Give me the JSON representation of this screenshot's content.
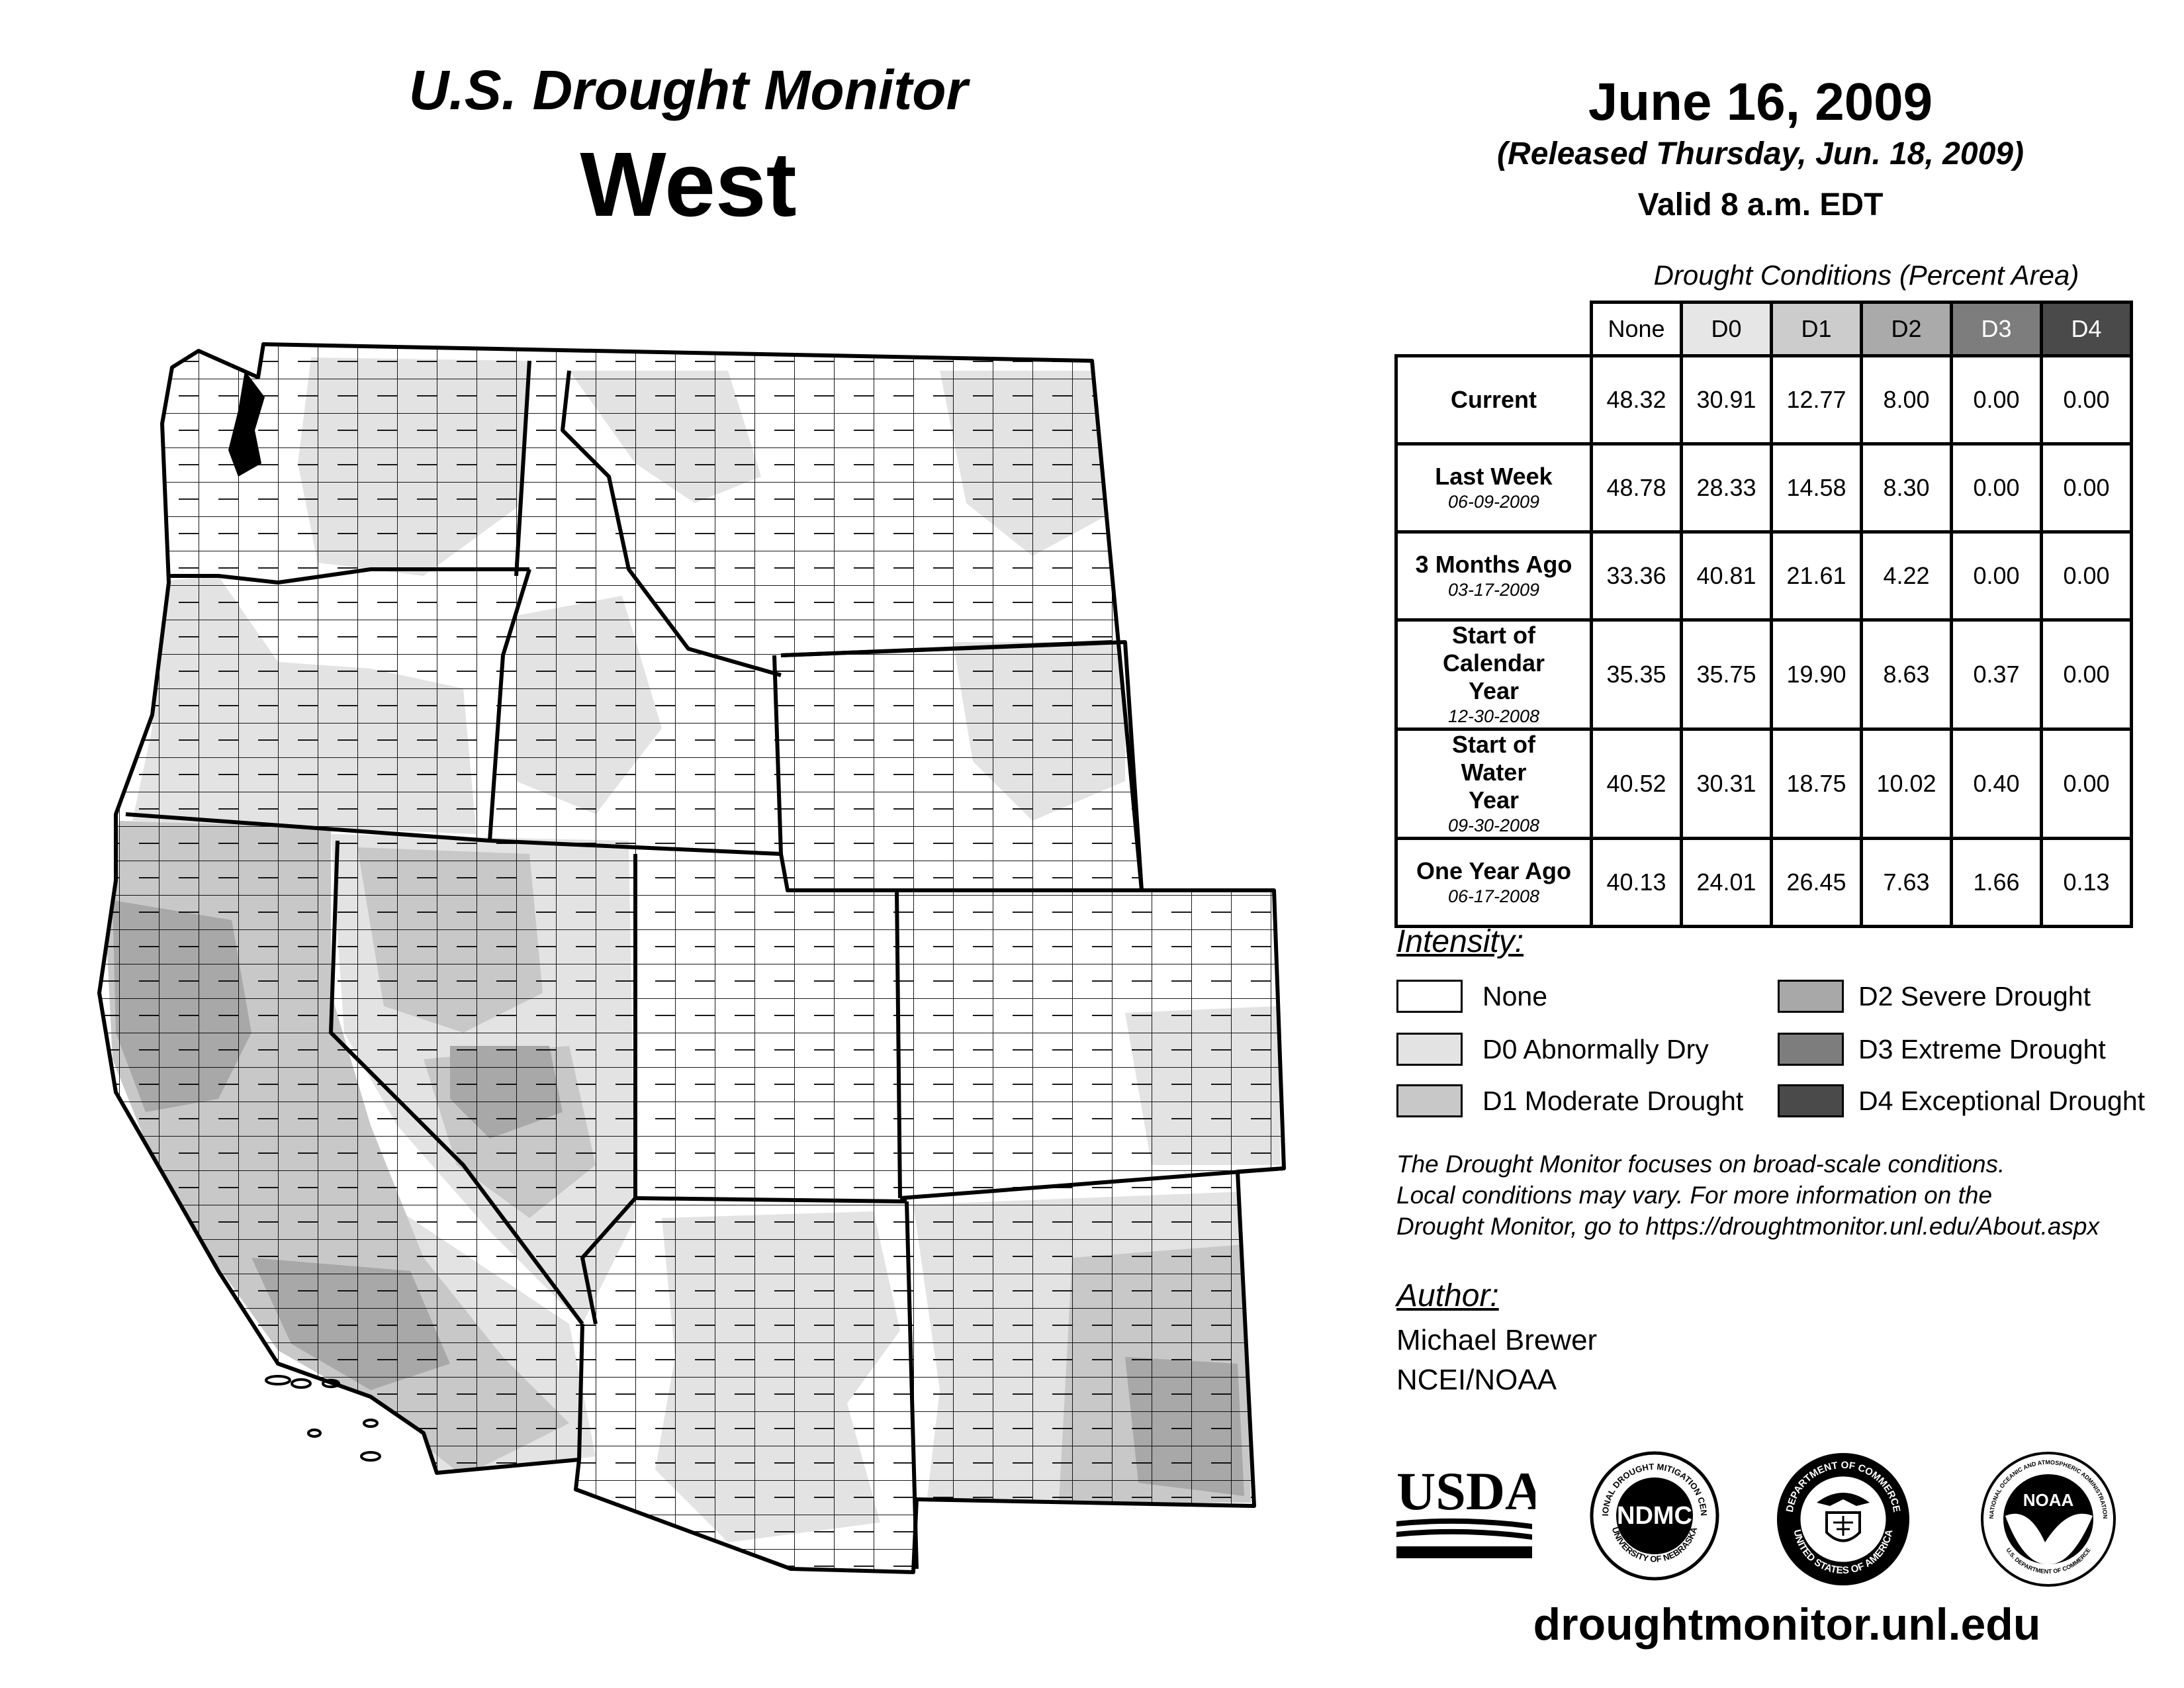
{
  "header": {
    "title": "U.S. Drought Monitor",
    "region": "West",
    "date": "June 16, 2009",
    "released": "(Released Thursday, Jun. 18, 2009)",
    "valid": "Valid 8 a.m. EDT"
  },
  "table": {
    "caption": "Drought Conditions (Percent Area)",
    "columns": [
      "None",
      "D0",
      "D1",
      "D2",
      "D3",
      "D4"
    ],
    "column_colors": [
      "#ffffff",
      "#e6e6e6",
      "#cccccc",
      "#aaaaaa",
      "#7d7d7d",
      "#4a4a4a"
    ],
    "column_text_colors": [
      "#000000",
      "#000000",
      "#000000",
      "#000000",
      "#ffffff",
      "#ffffff"
    ],
    "rows": [
      {
        "label": "Current",
        "date": "",
        "values": [
          "48.32",
          "30.91",
          "12.77",
          "8.00",
          "0.00",
          "0.00"
        ]
      },
      {
        "label": "Last Week",
        "date": "06-09-2009",
        "values": [
          "48.78",
          "28.33",
          "14.58",
          "8.30",
          "0.00",
          "0.00"
        ]
      },
      {
        "label": "3 Months Ago",
        "date": "03-17-2009",
        "values": [
          "33.36",
          "40.81",
          "21.61",
          "4.22",
          "0.00",
          "0.00"
        ]
      },
      {
        "label": "Start of Calendar Year",
        "date": "12-30-2008",
        "values": [
          "35.35",
          "35.75",
          "19.90",
          "8.63",
          "0.37",
          "0.00"
        ]
      },
      {
        "label": "Start of Water Year",
        "date": "09-30-2008",
        "values": [
          "40.52",
          "30.31",
          "18.75",
          "10.02",
          "0.40",
          "0.00"
        ]
      },
      {
        "label": "One Year Ago",
        "date": "06-17-2008",
        "values": [
          "40.13",
          "24.01",
          "26.45",
          "7.63",
          "1.66",
          "0.13"
        ]
      }
    ]
  },
  "legend": {
    "title": "Intensity:",
    "items": [
      {
        "label": "None",
        "color": "#ffffff"
      },
      {
        "label": "D0 Abnormally Dry",
        "color": "#e3e3e3"
      },
      {
        "label": "D1 Moderate Drought",
        "color": "#c8c8c8"
      },
      {
        "label": "D2 Severe Drought",
        "color": "#a8a8a8"
      },
      {
        "label": "D3 Extreme Drought",
        "color": "#7d7d7d"
      },
      {
        "label": "D4 Exceptional Drought",
        "color": "#4a4a4a"
      }
    ]
  },
  "note": {
    "line1": "The Drought Monitor focuses on broad-scale conditions.",
    "line2": "Local conditions may vary. For more information on the",
    "line3": "Drought Monitor, go to https://droughtmonitor.unl.edu/About.aspx"
  },
  "author": {
    "title": "Author:",
    "name": "Michael Brewer",
    "org": "NCEI/NOAA"
  },
  "logos": {
    "usda": "USDA",
    "ndmc": "NDMC",
    "ndmc_ring_top": "NATIONAL DROUGHT MITIGATION CENTER",
    "ndmc_ring_bottom": "UNIVERSITY OF NEBRASKA",
    "doc_ring_top": "DEPARTMENT OF COMMERCE",
    "doc_ring_bottom": "UNITED STATES OF AMERICA",
    "noaa": "NOAA",
    "noaa_ring_top": "NATIONAL OCEANIC AND ATMOSPHERIC ADMINISTRATION",
    "noaa_ring_bottom": "U.S. DEPARTMENT OF COMMERCE"
  },
  "footer": {
    "url": "droughtmonitor.unl.edu"
  },
  "map": {
    "states": [
      "WA",
      "OR",
      "CA",
      "NV",
      "ID",
      "MT",
      "WY",
      "UT",
      "CO",
      "AZ",
      "NM"
    ],
    "drought_levels_shown": [
      "None",
      "D0",
      "D1",
      "D2"
    ]
  }
}
